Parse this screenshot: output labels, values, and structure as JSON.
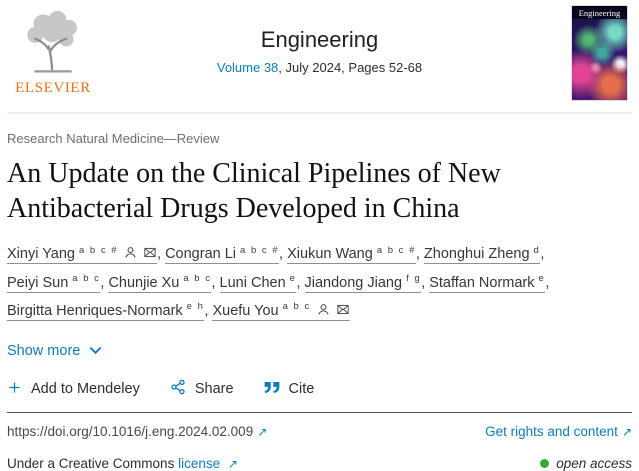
{
  "header": {
    "elsevier_wordmark": "ELSEVIER",
    "journal_title": "Engineering",
    "volume_link": "Volume 38",
    "issue_info": ", July 2024, Pages 52-68",
    "cover_title": "Engineering"
  },
  "article": {
    "category": "Research Natural Medicine—Review",
    "title": "An Update on the Clinical Pipelines of New Antibacterial Drugs Developed in China"
  },
  "authors": [
    {
      "name": "Xinyi Yang",
      "sups": "a b c #",
      "icons": [
        "person",
        "email"
      ]
    },
    {
      "name": "Congran Li",
      "sups": "a b c #",
      "icons": []
    },
    {
      "name": "Xiukun Wang",
      "sups": "a b c #",
      "icons": []
    },
    {
      "name": "Zhonghui Zheng",
      "sups": "d",
      "icons": []
    },
    {
      "name": "Peiyi Sun",
      "sups": "a b c",
      "icons": []
    },
    {
      "name": "Chunjie Xu",
      "sups": "a b c",
      "icons": []
    },
    {
      "name": "Luni Chen",
      "sups": "e",
      "icons": []
    },
    {
      "name": "Jiandong Jiang",
      "sups": "f g",
      "icons": []
    },
    {
      "name": "Staffan Normark",
      "sups": "e",
      "icons": []
    },
    {
      "name": "Birgitta Henriques-Normark",
      "sups": "e h",
      "icons": []
    },
    {
      "name": "Xuefu You",
      "sups": "a b c",
      "icons": [
        "person",
        "email"
      ]
    }
  ],
  "actions": {
    "show_more": "Show more",
    "add_to_mendeley": "Add to Mendeley",
    "share": "Share",
    "cite": "Cite"
  },
  "footer": {
    "doi": "https://doi.org/10.1016/j.eng.2024.02.009",
    "rights_link": "Get rights and content",
    "license_prefix": "Under a Creative Commons",
    "license_link": "license",
    "open_access": "open access"
  },
  "colors": {
    "link_blue": "#0c7dbb",
    "elsevier_orange": "#e9711c",
    "open_access_green": "#35a935"
  }
}
